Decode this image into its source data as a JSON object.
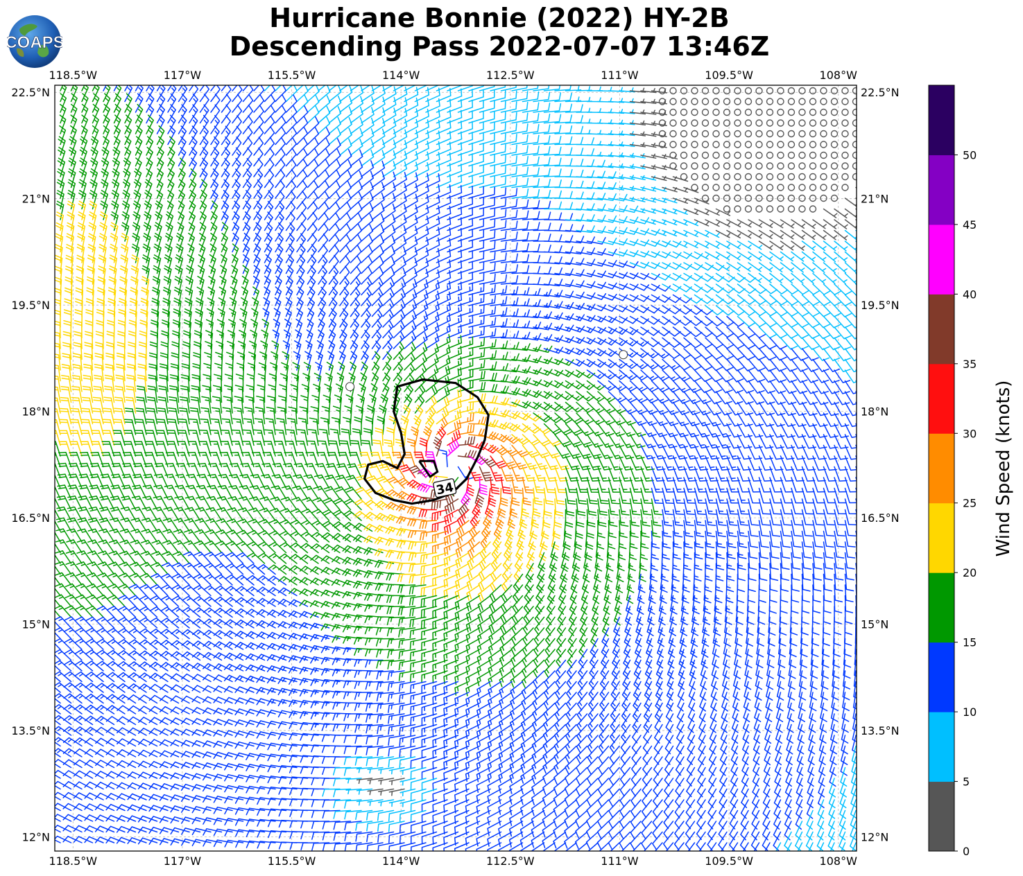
{
  "title_line1": "Hurricane Bonnie (2022) HY-2B",
  "title_line2": "Descending Pass 2022-07-07 13:46Z",
  "logo_text": "COAPS",
  "map": {
    "lon_range": [
      -118.75,
      -107.75
    ],
    "lat_range": [
      11.8,
      22.6
    ],
    "lon_ticks": [
      -118.5,
      -117,
      -115.5,
      -114,
      -112.5,
      -111,
      -109.5,
      -108
    ],
    "lon_tick_labels": [
      "118.5°W",
      "117°W",
      "115.5°W",
      "114°W",
      "112.5°W",
      "111°W",
      "109.5°W",
      "108°W"
    ],
    "lat_ticks": [
      12,
      13.5,
      15,
      16.5,
      18,
      19.5,
      21,
      22.5
    ],
    "lat_tick_labels": [
      "12°N",
      "13.5°N",
      "15°N",
      "16.5°N",
      "18°N",
      "19.5°N",
      "21°N",
      "22.5°N"
    ],
    "grid": "dashed",
    "storm_center": {
      "lon": -113.3,
      "lat": 17.2
    },
    "contour_label": "34",
    "contour_level_knots": 34,
    "island_outlines": [
      {
        "lon": -110.95,
        "lat": 18.8
      },
      {
        "lon": -114.7,
        "lat": 18.35
      }
    ]
  },
  "colorbar": {
    "label": "Wind Speed (knots)",
    "bounds": [
      0,
      5,
      10,
      15,
      20,
      25,
      30,
      35,
      40,
      45,
      50,
      55
    ],
    "tick_values": [
      0,
      5,
      10,
      15,
      20,
      25,
      30,
      35,
      40,
      45,
      50
    ],
    "tick_labels": [
      "0",
      "5",
      "10",
      "15",
      "20",
      "25",
      "30",
      "35",
      "40",
      "45",
      "50"
    ],
    "colors": [
      "#565656",
      "#00bfff",
      "#0039ff",
      "#009800",
      "#ffd700",
      "#ff8c00",
      "#ff0f0f",
      "#813a2a",
      "#ff00ff",
      "#8400c4",
      "#2b0061"
    ]
  }
}
